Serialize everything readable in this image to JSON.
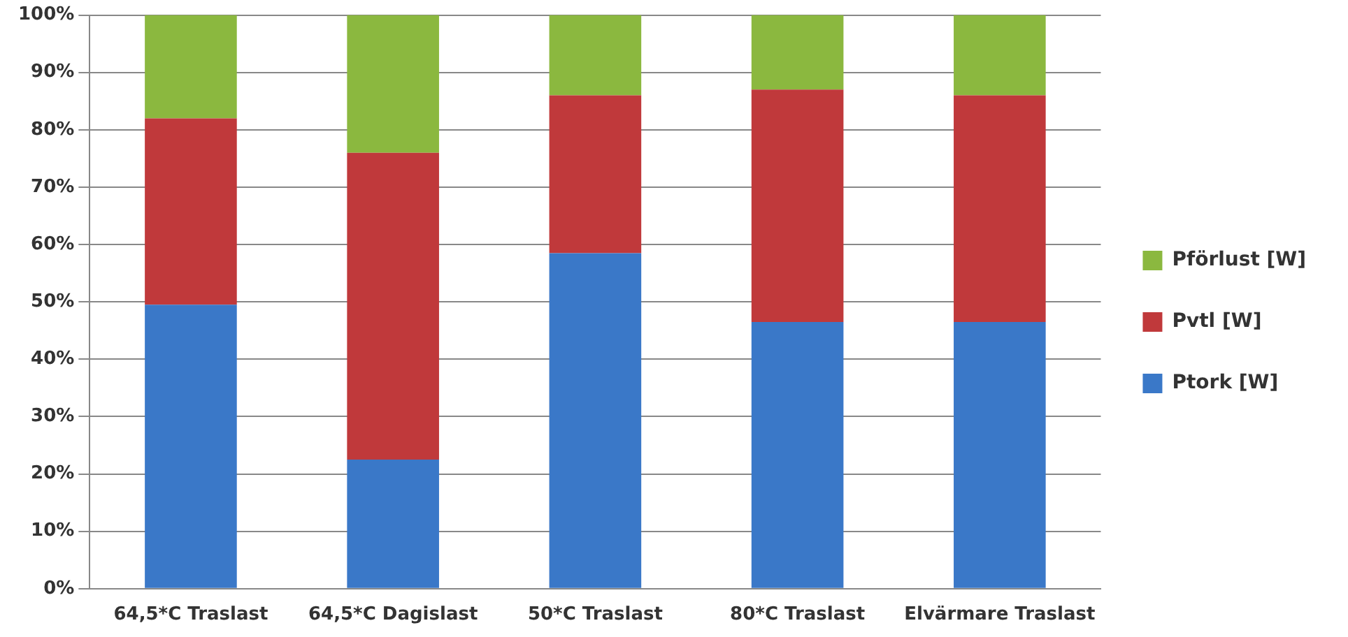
{
  "chart_data": {
    "type": "bar",
    "stacked": true,
    "categories": [
      "64,5*C Traslast",
      "64,5*C Dagislast",
      "50*C Traslast",
      "80*C Traslast",
      "Elvärmare Traslast"
    ],
    "series": [
      {
        "name": "Ptork [W]",
        "color": "#3a78c8",
        "values": [
          49.5,
          22.5,
          58.5,
          46.5,
          46.5
        ]
      },
      {
        "name": "Pvtl [W]",
        "color": "#c0393b",
        "values": [
          32.5,
          53.5,
          27.5,
          40.5,
          39.5
        ]
      },
      {
        "name": "Pförlust [W]",
        "color": "#8bb83f",
        "values": [
          18,
          24,
          14,
          13,
          14
        ]
      }
    ],
    "ylim": [
      0,
      100
    ],
    "yticks": [
      {
        "value": 0,
        "label": "0%"
      },
      {
        "value": 10,
        "label": "10%"
      },
      {
        "value": 20,
        "label": "20%"
      },
      {
        "value": 30,
        "label": "30%"
      },
      {
        "value": 40,
        "label": "40%"
      },
      {
        "value": 50,
        "label": "50%"
      },
      {
        "value": 60,
        "label": "60%"
      },
      {
        "value": 70,
        "label": "70%"
      },
      {
        "value": 80,
        "label": "80%"
      },
      {
        "value": 90,
        "label": "90%"
      },
      {
        "value": 100,
        "label": "100%"
      }
    ],
    "grid": "y",
    "legend": "right"
  }
}
